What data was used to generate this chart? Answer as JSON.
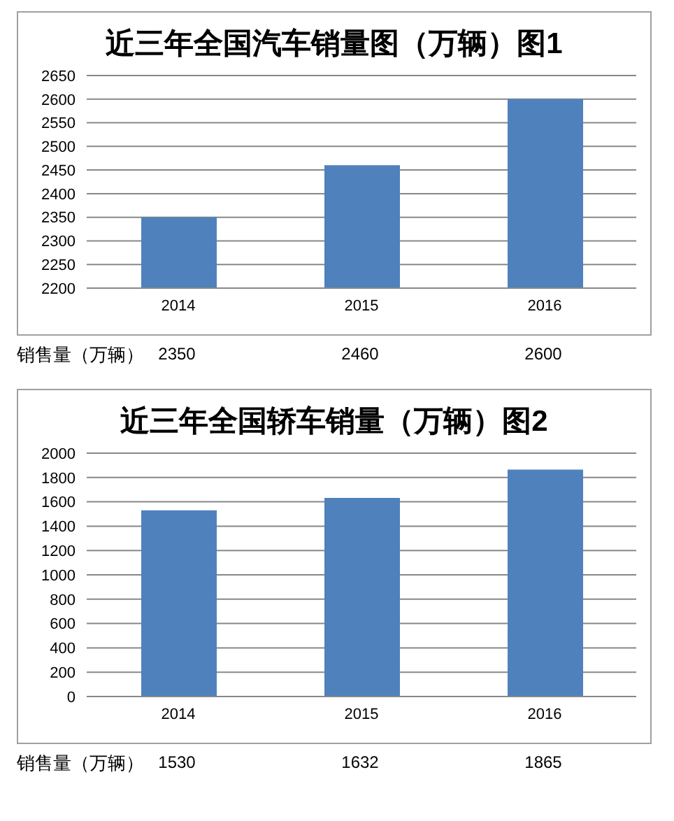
{
  "chart_data": [
    {
      "type": "bar",
      "title": "近三年全国汽车销量图（万辆）图1",
      "categories": [
        "2014",
        "2015",
        "2016"
      ],
      "values": [
        2350,
        2460,
        2600
      ],
      "color": "#4f81bd",
      "ylim": [
        2200,
        2650
      ],
      "yticks": [
        2200,
        2250,
        2300,
        2350,
        2400,
        2450,
        2500,
        2550,
        2600,
        2650
      ],
      "grid": "y",
      "data_labels": true,
      "annotations": [
        "销售量（万辆）"
      ]
    },
    {
      "type": "bar",
      "title": "近三年全国轿车销量（万辆）图2",
      "categories": [
        "2014",
        "2015",
        "2016"
      ],
      "values": [
        1530,
        1632,
        1865
      ],
      "color": "#4f81bd",
      "ylim": [
        0,
        2000
      ],
      "yticks": [
        0,
        200,
        400,
        600,
        800,
        1000,
        1200,
        1400,
        1600,
        1800,
        2000
      ],
      "grid": "y",
      "data_labels": true,
      "annotations": [
        "销售量（万辆）"
      ]
    }
  ]
}
